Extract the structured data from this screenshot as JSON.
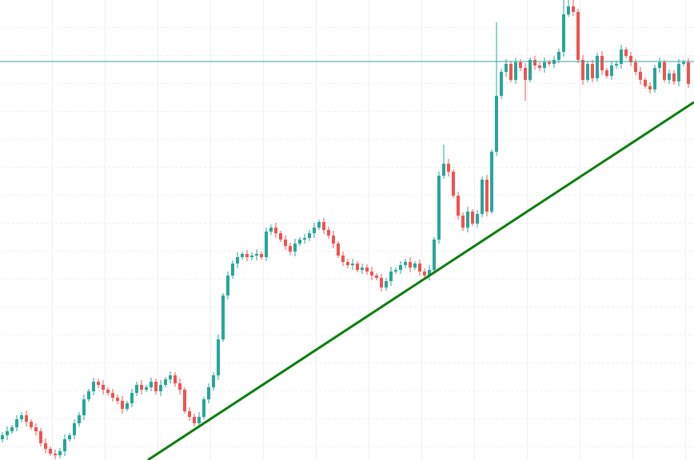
{
  "chart_data": {
    "type": "candlestick",
    "up_color": "#26a69a",
    "down_color": "#ef5350",
    "ylim": [
      0,
      576
    ],
    "xlim": [
      -0.5,
      144.17
    ],
    "open": [
      26,
      31,
      36,
      41,
      51,
      56,
      48,
      41,
      36,
      21,
      14,
      8,
      6,
      11,
      26,
      31,
      46,
      56,
      76,
      86,
      98,
      94,
      88,
      84,
      78,
      74,
      64,
      71,
      84,
      94,
      88,
      91,
      98,
      86,
      94,
      101,
      106,
      96,
      88,
      61,
      54,
      46,
      54,
      76,
      91,
      106,
      151,
      206,
      231,
      246,
      254,
      258,
      254,
      256,
      258,
      254,
      286,
      291,
      284,
      276,
      268,
      261,
      271,
      276,
      278,
      284,
      291,
      298,
      288,
      281,
      271,
      256,
      248,
      244,
      246,
      238,
      241,
      236,
      231,
      228,
      216,
      224,
      236,
      238,
      244,
      248,
      241,
      246,
      236,
      231,
      238,
      276,
      356,
      371,
      361,
      331,
      306,
      291,
      311,
      296,
      308,
      351,
      311,
      386,
      456,
      486,
      496,
      476,
      498,
      491,
      476,
      501,
      494,
      491,
      498,
      496,
      501,
      511,
      558,
      568,
      561,
      501,
      476,
      496,
      478,
      506,
      488,
      481,
      494,
      496,
      514,
      506,
      498,
      486,
      476,
      468,
      464,
      491,
      498,
      476,
      484,
      474,
      496,
      498
    ],
    "high": [
      35,
      42,
      44,
      56,
      60,
      62,
      51,
      46,
      40,
      27,
      17,
      13,
      15,
      32,
      34,
      51,
      60,
      82,
      89,
      103,
      102,
      100,
      91,
      89,
      82,
      80,
      74,
      89,
      98,
      100,
      94,
      103,
      102,
      100,
      104,
      111,
      110,
      102,
      91,
      66,
      58,
      60,
      79,
      96,
      110,
      157,
      209,
      236,
      250,
      260,
      261,
      263,
      260,
      264,
      261,
      291,
      295,
      297,
      287,
      281,
      272,
      277,
      279,
      283,
      288,
      297,
      301,
      303,
      292,
      287,
      274,
      261,
      252,
      252,
      249,
      246,
      245,
      242,
      234,
      233,
      228,
      242,
      241,
      249,
      252,
      254,
      249,
      251,
      240,
      244,
      279,
      361,
      395,
      377,
      364,
      336,
      310,
      317,
      314,
      313,
      355,
      357,
      389,
      548,
      490,
      502,
      499,
      503,
      502,
      497,
      504,
      506,
      498,
      504,
      501,
      506,
      515,
      576,
      580,
      576,
      565,
      507,
      499,
      501,
      510,
      512,
      491,
      499,
      500,
      520,
      517,
      511,
      502,
      492,
      479,
      473,
      495,
      504,
      501,
      489,
      488,
      502,
      501,
      503
    ],
    "low": [
      22,
      25,
      33,
      36,
      47,
      42,
      38,
      31,
      17,
      8,
      5,
      1,
      2,
      5,
      23,
      26,
      42,
      50,
      73,
      81,
      90,
      82,
      81,
      73,
      70,
      58,
      61,
      66,
      80,
      82,
      85,
      86,
      82,
      80,
      91,
      96,
      92,
      82,
      58,
      49,
      42,
      40,
      51,
      71,
      87,
      100,
      148,
      201,
      227,
      240,
      251,
      249,
      250,
      250,
      251,
      249,
      282,
      278,
      273,
      263,
      257,
      255,
      268,
      271,
      274,
      278,
      288,
      283,
      277,
      265,
      253,
      243,
      240,
      238,
      235,
      233,
      232,
      225,
      225,
      211,
      212,
      218,
      233,
      233,
      240,
      235,
      238,
      231,
      227,
      225,
      235,
      271,
      352,
      355,
      328,
      301,
      287,
      285,
      293,
      291,
      304,
      305,
      308,
      381,
      452,
      480,
      473,
      471,
      487,
      450,
      473,
      489,
      487,
      485,
      493,
      491,
      497,
      505,
      555,
      556,
      497,
      470,
      473,
      473,
      474,
      482,
      478,
      476,
      490,
      490,
      503,
      493,
      482,
      470,
      465,
      459,
      460,
      485,
      473,
      471,
      470,
      468,
      493,
      466
    ],
    "close": [
      31,
      36,
      41,
      51,
      56,
      48,
      41,
      36,
      21,
      14,
      8,
      6,
      11,
      26,
      31,
      46,
      56,
      76,
      86,
      98,
      94,
      88,
      84,
      78,
      74,
      64,
      71,
      84,
      94,
      88,
      91,
      98,
      86,
      94,
      101,
      106,
      96,
      88,
      61,
      54,
      46,
      54,
      76,
      91,
      106,
      151,
      206,
      231,
      246,
      254,
      258,
      254,
      256,
      258,
      254,
      286,
      291,
      284,
      276,
      268,
      261,
      271,
      276,
      278,
      284,
      291,
      298,
      288,
      281,
      271,
      256,
      248,
      244,
      246,
      238,
      241,
      236,
      231,
      228,
      216,
      224,
      236,
      238,
      244,
      248,
      241,
      246,
      236,
      231,
      238,
      276,
      356,
      371,
      361,
      331,
      306,
      291,
      311,
      296,
      308,
      351,
      311,
      386,
      456,
      486,
      496,
      476,
      498,
      491,
      476,
      501,
      494,
      491,
      498,
      496,
      501,
      511,
      558,
      568,
      561,
      501,
      476,
      496,
      478,
      506,
      488,
      481,
      494,
      496,
      514,
      506,
      498,
      486,
      476,
      468,
      464,
      491,
      498,
      476,
      484,
      474,
      496,
      498,
      471
    ],
    "hline": {
      "value": 499,
      "color": "#3aa0a0"
    },
    "trendline": {
      "x": [
        30.33,
        144.17
      ],
      "y": [
        0,
        448
      ],
      "color": "#0b7d0b"
    }
  }
}
